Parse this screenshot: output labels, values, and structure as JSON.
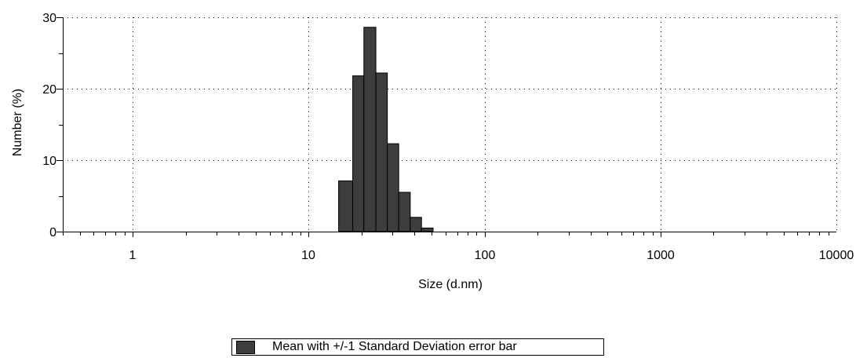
{
  "chart_data": {
    "type": "bar",
    "xlabel": "Size (d.nm)",
    "ylabel": "Number (%)",
    "x_scale": "log",
    "xlim": [
      0.4,
      10000
    ],
    "ylim": [
      0,
      30
    ],
    "x_ticks": [
      "1",
      "10",
      "100",
      "1000",
      "10000"
    ],
    "y_ticks": [
      "0",
      "10",
      "20",
      "30"
    ],
    "grid": true,
    "legend_position": "bottom-center",
    "bar_color": "#3d3d3d",
    "bins": [
      {
        "from": 14.8,
        "to": 17.8,
        "value": 7.1
      },
      {
        "from": 17.8,
        "to": 20.6,
        "value": 21.8
      },
      {
        "from": 20.6,
        "to": 24.1,
        "value": 28.6
      },
      {
        "from": 24.1,
        "to": 28.0,
        "value": 22.2
      },
      {
        "from": 28.0,
        "to": 32.5,
        "value": 12.3
      },
      {
        "from": 32.5,
        "to": 37.8,
        "value": 5.5
      },
      {
        "from": 37.8,
        "to": 43.8,
        "value": 2.0
      },
      {
        "from": 43.8,
        "to": 51.0,
        "value": 0.5
      }
    ],
    "series": [
      {
        "name": "Mean with +/-1 Standard Deviation error bar"
      }
    ]
  }
}
